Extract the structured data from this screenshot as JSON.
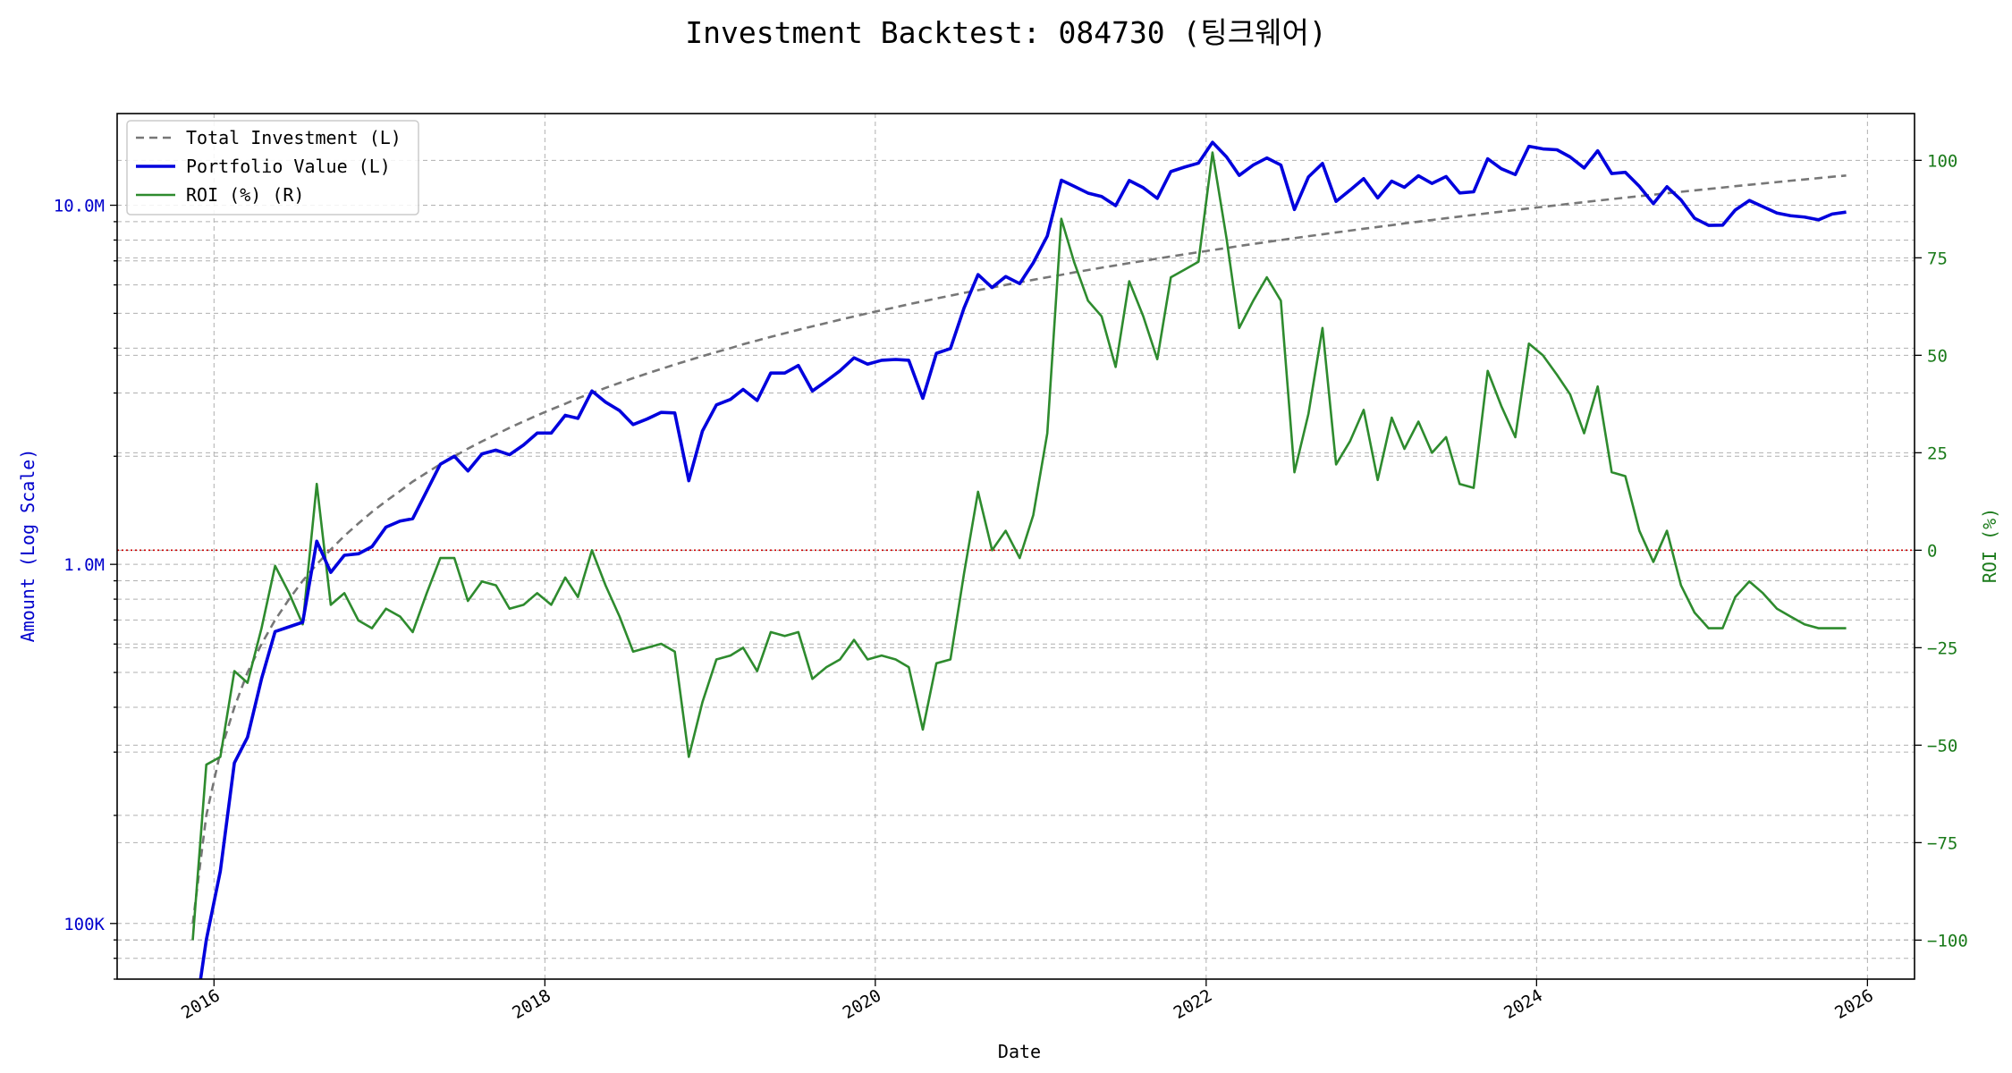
{
  "chart_data": {
    "type": "line",
    "title": "Investment Backtest: 084730 (팅크웨어)",
    "xlabel": "Date",
    "ylabel_left": "Amount (Log Scale)",
    "ylabel_right": "ROI (%)",
    "left_scale": "log",
    "left_ylim": [
      70000,
      18000000
    ],
    "right_ylim": [
      -110,
      112
    ],
    "x_range": [
      "2015-06-01",
      "2026-04-15"
    ],
    "grid": true,
    "legend_position": "top-left",
    "x_ticks": [
      {
        "date": "2016-01-01",
        "label": "2016"
      },
      {
        "date": "2018-01-01",
        "label": "2018"
      },
      {
        "date": "2020-01-01",
        "label": "2020"
      },
      {
        "date": "2022-01-01",
        "label": "2022"
      },
      {
        "date": "2024-01-01",
        "label": "2024"
      },
      {
        "date": "2026-01-01",
        "label": "2026"
      }
    ],
    "left_ticks": [
      {
        "value": 100000,
        "label": "100K"
      },
      {
        "value": 1000000,
        "label": "1.0M"
      },
      {
        "value": 10000000,
        "label": "10.0M"
      }
    ],
    "right_ticks": [
      {
        "value": -100,
        "label": "−100"
      },
      {
        "value": -75,
        "label": "−75"
      },
      {
        "value": -50,
        "label": "−50"
      },
      {
        "value": -25,
        "label": "−25"
      },
      {
        "value": 0,
        "label": "0"
      },
      {
        "value": 25,
        "label": "25"
      },
      {
        "value": 50,
        "label": "50"
      },
      {
        "value": 75,
        "label": "75"
      },
      {
        "value": 100,
        "label": "100"
      }
    ],
    "zero_line": {
      "axis": "right",
      "value": 0,
      "color": "#cc0000"
    },
    "colors": {
      "total_investment": "#777777",
      "portfolio": "#0000dd",
      "roi": "#2e8b2e",
      "left_axis": "#0000cc",
      "right_axis": "#1a7a1a"
    },
    "dates": [
      "2015-11",
      "2015-12",
      "2016-01",
      "2016-02",
      "2016-03",
      "2016-04",
      "2016-05",
      "2016-06",
      "2016-07",
      "2016-08",
      "2016-09",
      "2016-10",
      "2016-11",
      "2016-12",
      "2017-01",
      "2017-02",
      "2017-03",
      "2017-04",
      "2017-05",
      "2017-06",
      "2017-07",
      "2017-08",
      "2017-09",
      "2017-10",
      "2017-11",
      "2017-12",
      "2018-01",
      "2018-02",
      "2018-03",
      "2018-04",
      "2018-05",
      "2018-06",
      "2018-07",
      "2018-08",
      "2018-09",
      "2018-10",
      "2018-11",
      "2018-12",
      "2019-01",
      "2019-02",
      "2019-03",
      "2019-04",
      "2019-05",
      "2019-06",
      "2019-07",
      "2019-08",
      "2019-09",
      "2019-10",
      "2019-11",
      "2019-12",
      "2020-01",
      "2020-02",
      "2020-03",
      "2020-04",
      "2020-05",
      "2020-06",
      "2020-07",
      "2020-08",
      "2020-09",
      "2020-10",
      "2020-11",
      "2020-12",
      "2021-01",
      "2021-02",
      "2021-03",
      "2021-04",
      "2021-05",
      "2021-06",
      "2021-07",
      "2021-08",
      "2021-09",
      "2021-10",
      "2021-11",
      "2021-12",
      "2022-01",
      "2022-02",
      "2022-03",
      "2022-04",
      "2022-05",
      "2022-06",
      "2022-07",
      "2022-08",
      "2022-09",
      "2022-10",
      "2022-11",
      "2022-12",
      "2023-01",
      "2023-02",
      "2023-03",
      "2023-04",
      "2023-05",
      "2023-06",
      "2023-07",
      "2023-08",
      "2023-09",
      "2023-10",
      "2023-11",
      "2023-12",
      "2024-01",
      "2024-02",
      "2024-03",
      "2024-04",
      "2024-05",
      "2024-06",
      "2024-07",
      "2024-08",
      "2024-09",
      "2024-10",
      "2024-11",
      "2024-12",
      "2025-01",
      "2025-02",
      "2025-03",
      "2025-04",
      "2025-05",
      "2025-06",
      "2025-07",
      "2025-08",
      "2025-09",
      "2025-10",
      "2025-11"
    ],
    "series": [
      {
        "name": "Total Investment (L)",
        "axis": "left",
        "style": "dashed",
        "values": [
          100000,
          200000,
          300000,
          400000,
          500000,
          600000,
          700000,
          800000,
          900000,
          1000000,
          1100000,
          1200000,
          1300000,
          1400000,
          1500000,
          1600000,
          1700000,
          1800000,
          1900000,
          2000000,
          2100000,
          2200000,
          2300000,
          2400000,
          2500000,
          2600000,
          2700000,
          2800000,
          2900000,
          3000000,
          3100000,
          3200000,
          3300000,
          3400000,
          3500000,
          3600000,
          3700000,
          3800000,
          3900000,
          4000000,
          4100000,
          4200000,
          4300000,
          4400000,
          4500000,
          4600000,
          4700000,
          4800000,
          4900000,
          5000000,
          5100000,
          5200000,
          5300000,
          5400000,
          5500000,
          5600000,
          5700000,
          5800000,
          5900000,
          6000000,
          6100000,
          6200000,
          6300000,
          6400000,
          6500000,
          6600000,
          6700000,
          6800000,
          6900000,
          7000000,
          7100000,
          7200000,
          7300000,
          7400000,
          7500000,
          7600000,
          7700000,
          7800000,
          7900000,
          8000000,
          8100000,
          8200000,
          8300000,
          8400000,
          8500000,
          8600000,
          8700000,
          8800000,
          8900000,
          9000000,
          9100000,
          9200000,
          9300000,
          9400000,
          9500000,
          9600000,
          9700000,
          9800000,
          9900000,
          10000000,
          10100000,
          10200000,
          10300000,
          10400000,
          10500000,
          10600000,
          10700000,
          10800000,
          10900000,
          11000000,
          11100000,
          11200000,
          11300000,
          11400000,
          11500000,
          11600000,
          11700000,
          11800000,
          11900000,
          12000000,
          12100000
        ]
      },
      {
        "name": "Portfolio Value (L)",
        "axis": "left",
        "style": "solid",
        "values": [
          0,
          90000,
          140000,
          280000,
          330000,
          480000,
          650000,
          670000,
          690000,
          1160000,
          950000,
          1060000,
          1070000,
          1120000,
          1270000,
          1320000,
          1340000,
          1600000,
          1900000,
          2000000,
          1820000,
          2030000,
          2080000,
          2020000,
          2150000,
          2320000,
          2320000,
          2600000,
          2550000,
          3040000,
          2830000,
          2680000,
          2450000,
          2540000,
          2650000,
          2640000,
          1710000,
          2350000,
          2780000,
          2880000,
          3070000,
          2860000,
          3410000,
          3410000,
          3580000,
          3040000,
          3240000,
          3460000,
          3760000,
          3610000,
          3700000,
          3720000,
          3700000,
          2900000,
          3870000,
          3990000,
          5170000,
          6410000,
          5900000,
          6330000,
          6050000,
          6910000,
          8210000,
          11740000,
          11300000,
          10810000,
          10580000,
          9970000,
          11720000,
          11190000,
          10450000,
          12410000,
          12780000,
          13100000,
          14970000,
          13630000,
          12110000,
          12940000,
          13540000,
          12940000,
          9730000,
          11990000,
          13070000,
          10250000,
          11020000,
          11860000,
          10480000,
          11670000,
          11220000,
          12080000,
          11500000,
          12020000,
          10820000,
          10900000,
          13470000,
          12640000,
          12170000,
          14590000,
          14350000,
          14270000,
          13630000,
          12700000,
          14180000,
          12250000,
          12350000,
          11290000,
          10100000,
          11260000,
          10350000,
          9200000,
          8790000,
          8800000,
          9700000,
          10310000,
          9910000,
          9510000,
          9350000,
          9270000,
          9110000,
          9450000,
          9570000
        ]
      },
      {
        "name": "ROI (%) (R)",
        "axis": "right",
        "style": "solid",
        "values": [
          -100,
          -55,
          -53,
          -31,
          -34,
          -20,
          -4,
          -11,
          -19,
          17,
          -14,
          -11,
          -18,
          -20,
          -15,
          -17,
          -21,
          -11,
          -2,
          -2,
          -13,
          -8,
          -9,
          -15,
          -14,
          -11,
          -14,
          -7,
          -12,
          0,
          -9,
          -17,
          -26,
          -25,
          -24,
          -26,
          -53,
          -39,
          -28,
          -27,
          -25,
          -31,
          -21,
          -22,
          -21,
          -33,
          -30,
          -28,
          -23,
          -28,
          -27,
          -28,
          -30,
          -46,
          -29,
          -28,
          -6,
          15,
          0,
          5,
          -2,
          9,
          30,
          85,
          74,
          64,
          60,
          47,
          69,
          60,
          49,
          70,
          72,
          74,
          102,
          80,
          57,
          64,
          70,
          64,
          20,
          35,
          57,
          22,
          28,
          36,
          18,
          34,
          26,
          33,
          25,
          29,
          17,
          16,
          46,
          37,
          29,
          53,
          50,
          45,
          40,
          30,
          42,
          20,
          19,
          5,
          -3,
          5,
          -9,
          -16,
          -20,
          -20,
          -12,
          -8,
          -11,
          -15,
          -17,
          -19,
          -20,
          -20,
          -20
        ]
      }
    ]
  }
}
